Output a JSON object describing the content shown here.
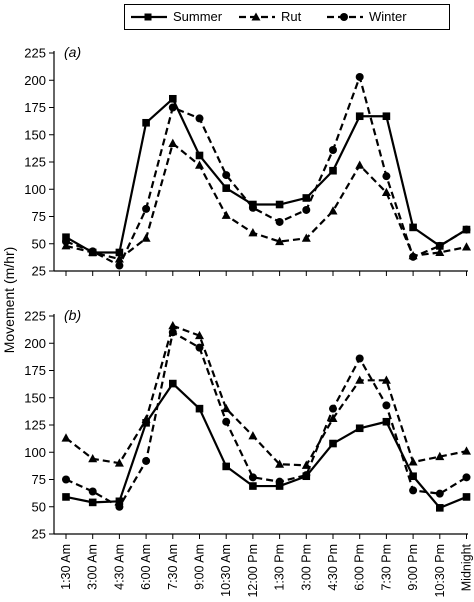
{
  "legend": {
    "placement": "top-center",
    "entries": [
      {
        "name": "Summer",
        "marker": "square",
        "line": "solid"
      },
      {
        "name": "Rut",
        "marker": "triangle",
        "line": "dashed"
      },
      {
        "name": "Winter",
        "marker": "circle",
        "line": "dashed"
      }
    ]
  },
  "colors": {
    "line": "#000000",
    "background": "#ffffff"
  },
  "chart_data": [
    {
      "type": "line",
      "panel_label": "(a)",
      "ylabel": "Movement (m/hr)",
      "ylim": [
        25,
        225
      ],
      "yticks": [
        25,
        50,
        75,
        100,
        125,
        150,
        175,
        200,
        225
      ],
      "grid": false,
      "categories": [
        "1:30 Am",
        "3:00 Am",
        "4:30 Am",
        "6:00 Am",
        "7:30 Am",
        "9:00 Am",
        "10:30 Am",
        "12:00 Pm",
        "1:30 Pm",
        "3:00 Pm",
        "4:30 Pm",
        "6:00 Pm",
        "7:30 Pm",
        "9:00 Pm",
        "10:30 Pm",
        "Midnight"
      ],
      "series": [
        {
          "name": "Summer",
          "values": [
            56,
            42,
            42,
            161,
            183,
            131,
            101,
            86,
            86,
            92,
            117,
            167,
            167,
            65,
            48,
            63
          ]
        },
        {
          "name": "Rut",
          "values": [
            48,
            42,
            36,
            55,
            142,
            122,
            76,
            60,
            52,
            55,
            80,
            122,
            97,
            39,
            42,
            47
          ]
        },
        {
          "name": "Winter",
          "values": [
            52,
            43,
            30,
            82,
            175,
            165,
            113,
            83,
            70,
            81,
            136,
            203,
            112,
            38,
            48,
            63
          ]
        }
      ]
    },
    {
      "type": "line",
      "panel_label": "(b)",
      "ylabel": "Movement (m/hr)",
      "ylim": [
        25,
        225
      ],
      "yticks": [
        25,
        50,
        75,
        100,
        125,
        150,
        175,
        200,
        225
      ],
      "grid": false,
      "categories": [
        "1:30 Am",
        "3:00 Am",
        "4:30 Am",
        "6:00 Am",
        "7:30 Am",
        "9:00 Am",
        "10:30 Am",
        "12:00 Pm",
        "1:30 Pm",
        "3:00 Pm",
        "4:30 Pm",
        "6:00 Pm",
        "7:30 Pm",
        "9:00 Pm",
        "10:30 Pm",
        "Midnight"
      ],
      "series": [
        {
          "name": "Summer",
          "values": [
            59,
            54,
            55,
            127,
            163,
            140,
            87,
            69,
            69,
            78,
            108,
            122,
            128,
            78,
            49,
            59
          ]
        },
        {
          "name": "Rut",
          "values": [
            113,
            94,
            90,
            130,
            216,
            207,
            140,
            115,
            89,
            88,
            131,
            166,
            166,
            91,
            96,
            101
          ]
        },
        {
          "name": "Winter",
          "values": [
            75,
            64,
            50,
            92,
            210,
            196,
            128,
            77,
            73,
            79,
            140,
            186,
            143,
            65,
            62,
            77
          ]
        }
      ]
    }
  ]
}
